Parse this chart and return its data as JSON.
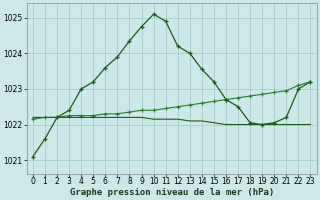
{
  "title": "Graphe pression niveau de la mer (hPa)",
  "bg_color": "#cce8e8",
  "grid_color": "#aacccc",
  "line_color": "#1a5c1a",
  "line_color2": "#2d7a2d",
  "xlim": [
    -0.5,
    23.5
  ],
  "ylim": [
    1020.6,
    1025.4
  ],
  "yticks": [
    1021,
    1022,
    1023,
    1024,
    1025
  ],
  "xticks": [
    0,
    1,
    2,
    3,
    4,
    5,
    6,
    7,
    8,
    9,
    10,
    11,
    12,
    13,
    14,
    15,
    16,
    17,
    18,
    19,
    20,
    21,
    22,
    23
  ],
  "series1_x": [
    0,
    1,
    2,
    3,
    4,
    5,
    6,
    7,
    8,
    9,
    10,
    11,
    12,
    13,
    14,
    15,
    16,
    17,
    18,
    19,
    20,
    21,
    22,
    23
  ],
  "series1_y": [
    1021.1,
    1021.6,
    1022.2,
    1022.4,
    1023.0,
    1023.2,
    1023.6,
    1023.9,
    1024.35,
    1024.75,
    1025.1,
    1024.9,
    1024.2,
    1024.0,
    1023.55,
    1023.2,
    1022.7,
    1022.5,
    1022.05,
    1022.0,
    1022.05,
    1022.2,
    1023.0,
    1023.2
  ],
  "series2_x": [
    0,
    1,
    2,
    3,
    4,
    5,
    6,
    7,
    8,
    9,
    10,
    11,
    12,
    13,
    14,
    15,
    16,
    17,
    18,
    19,
    20,
    21,
    22,
    23
  ],
  "series2_y": [
    1022.15,
    1022.2,
    1022.2,
    1022.25,
    1022.25,
    1022.25,
    1022.3,
    1022.3,
    1022.35,
    1022.4,
    1022.4,
    1022.45,
    1022.5,
    1022.55,
    1022.6,
    1022.65,
    1022.7,
    1022.75,
    1022.8,
    1022.85,
    1022.9,
    1022.95,
    1023.1,
    1023.2
  ],
  "series3_x": [
    0,
    1,
    2,
    3,
    4,
    5,
    6,
    7,
    8,
    9,
    10,
    11,
    12,
    13,
    14,
    15,
    16,
    17,
    18,
    19,
    20,
    21,
    22,
    23
  ],
  "series3_y": [
    1022.2,
    1022.2,
    1022.2,
    1022.2,
    1022.2,
    1022.2,
    1022.2,
    1022.2,
    1022.2,
    1022.2,
    1022.15,
    1022.15,
    1022.15,
    1022.1,
    1022.1,
    1022.05,
    1022.0,
    1022.0,
    1022.0,
    1022.0,
    1022.0,
    1022.0,
    1022.0,
    1022.0
  ],
  "label_fontsize": 6.5,
  "tick_fontsize": 5.5
}
